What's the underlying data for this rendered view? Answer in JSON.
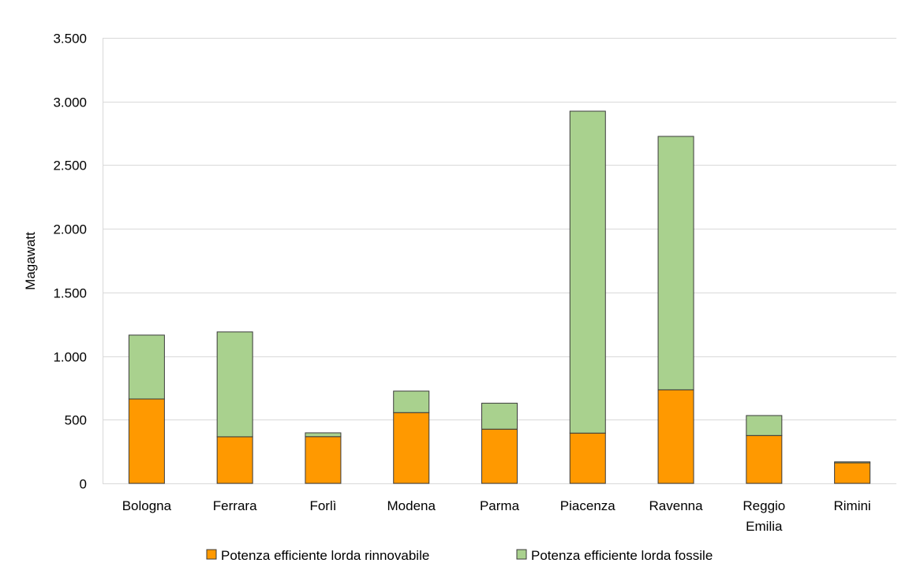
{
  "chart_data": {
    "type": "bar",
    "stacked": true,
    "title": "",
    "xlabel": "",
    "ylabel": "Magawatt",
    "ylim": [
      0,
      3500
    ],
    "yticks": [
      0,
      500,
      1000,
      1500,
      2000,
      2500,
      3000,
      3500
    ],
    "ytick_labels": [
      "0",
      "500",
      "1.000",
      "1.500",
      "2.000",
      "2.500",
      "3.000",
      "3.500"
    ],
    "grid": true,
    "legend_position": "bottom",
    "categories": [
      [
        "Bologna"
      ],
      [
        "Ferrara"
      ],
      [
        "Forlì"
      ],
      [
        "Modena"
      ],
      [
        "Parma"
      ],
      [
        "Piacenza"
      ],
      [
        "Ravenna"
      ],
      [
        "Reggio",
        "Emilia"
      ],
      [
        "Rimini"
      ]
    ],
    "series": [
      {
        "name": "Potenza efficiente lorda rinnovabile",
        "color": "#ff9900",
        "values": [
          663,
          366,
          367,
          556,
          426,
          395,
          735,
          376,
          161
        ]
      },
      {
        "name": "Potenza efficiente lorda fossile",
        "color": "#a9d18e",
        "values": [
          502,
          824,
          30,
          169,
          204,
          2529,
          1991,
          157,
          8
        ]
      }
    ]
  }
}
